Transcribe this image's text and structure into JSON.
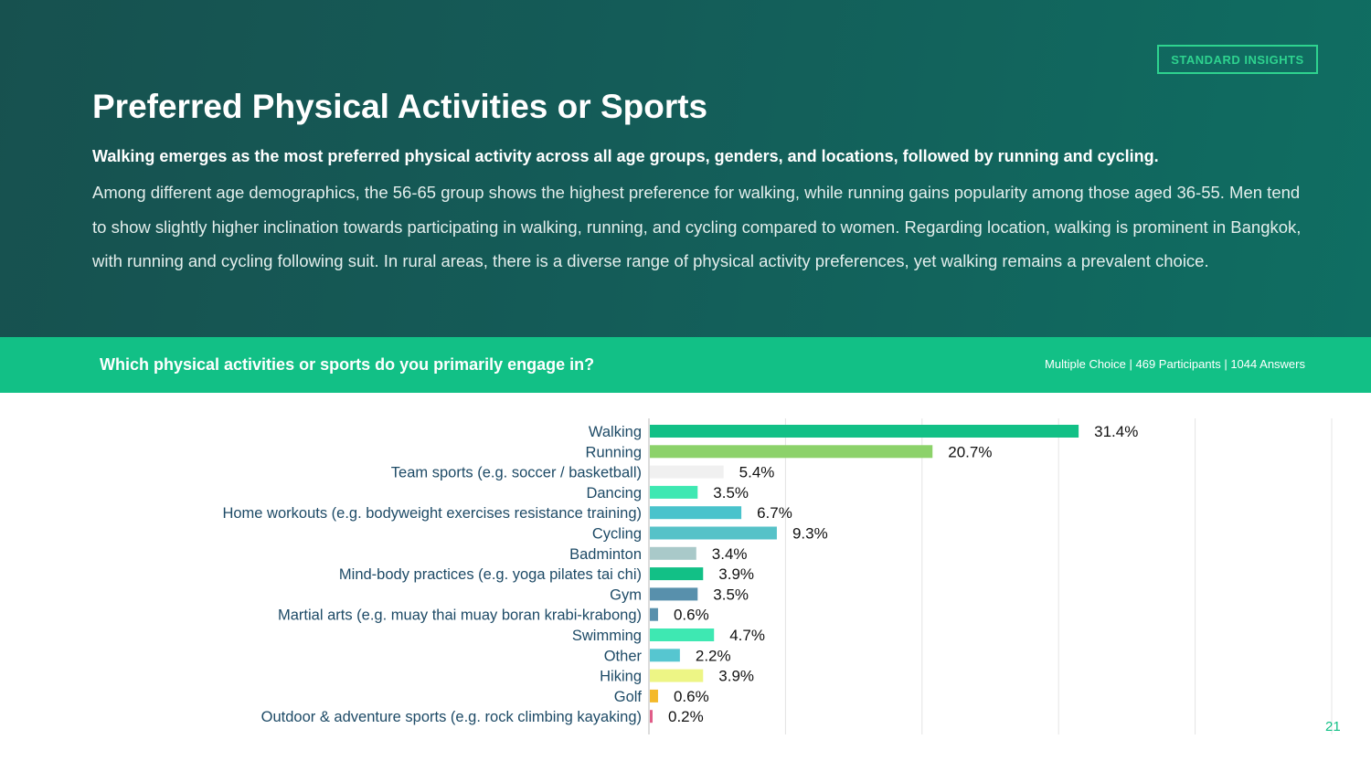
{
  "badge": "STANDARD INSIGHTS",
  "title": "Preferred Physical Activities or Sports",
  "lead": "Walking emerges as the most preferred physical activity across all age groups, genders, and locations, followed by running and cycling.",
  "body": "Among different age demographics, the 56-65 group shows the highest preference for walking, while running gains popularity among those aged 36-55. Men tend to show slightly higher inclination towards participating in walking, running, and cycling compared to women. Regarding location, walking is prominent in Bangkok, with running and cycling following suit. In rural areas, there is a diverse range of physical activity preferences, yet walking remains a prevalent choice.",
  "question": "Which physical activities or sports do you primarily engage in?",
  "meta": "Multiple Choice | 469 Participants | 1044 Answers",
  "page_number": "21",
  "colors": {
    "accent": "#12c086",
    "badge": "#2ed38f",
    "hero": "#145c58"
  },
  "chart_data": {
    "type": "bar",
    "orientation": "horizontal",
    "unit": "%",
    "xlim": [
      0,
      50
    ],
    "grid": true,
    "categories": [
      "Walking",
      "Running",
      "Team sports (e.g. soccer / basketball)",
      "Dancing",
      "Home workouts (e.g. bodyweight exercises resistance training)",
      "Cycling",
      "Badminton",
      "Mind-body practices (e.g. yoga pilates tai chi)",
      "Gym",
      "Martial arts (e.g. muay thai muay boran krabi-krabong)",
      "Swimming",
      "Other",
      "Hiking",
      "Golf",
      "Outdoor & adventure sports (e.g. rock climbing kayaking)"
    ],
    "values": [
      31.4,
      20.7,
      5.4,
      3.5,
      6.7,
      9.3,
      3.4,
      3.9,
      3.5,
      0.6,
      4.7,
      2.2,
      3.9,
      0.6,
      0.2
    ],
    "labels": [
      "31.4%",
      "20.7%",
      "5.4%",
      "3.5%",
      "6.7%",
      "9.3%",
      "3.4%",
      "3.9%",
      "3.5%",
      "0.6%",
      "4.7%",
      "2.2%",
      "3.9%",
      "0.6%",
      "0.2%"
    ],
    "bar_colors": [
      "#12c086",
      "#8cd26a",
      "#f0f0f0",
      "#3ee8b2",
      "#49c3cc",
      "#56c2c8",
      "#a9c9c9",
      "#12c086",
      "#5890ac",
      "#5890ac",
      "#3ee8b2",
      "#56c6d0",
      "#edf585",
      "#f4b92a",
      "#e05c88"
    ]
  }
}
